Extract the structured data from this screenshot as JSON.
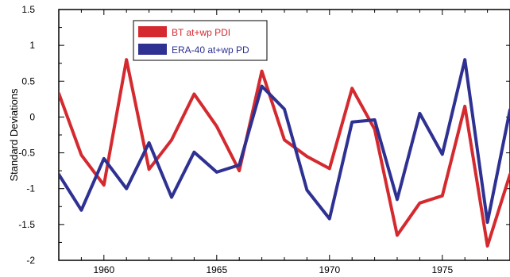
{
  "chart_data": {
    "type": "line",
    "title": "",
    "xlabel": "",
    "ylabel": "Standard Deviations",
    "xlim": [
      1958,
      1978
    ],
    "ylim": [
      -2,
      1.5
    ],
    "x_ticks": [
      1960,
      1965,
      1970,
      1975
    ],
    "x_tick_labels": [
      "1960",
      "1965",
      "1970",
      "1975"
    ],
    "y_ticks": [
      -2,
      -1.5,
      -1,
      -0.5,
      0,
      0.5,
      1,
      1.5
    ],
    "y_tick_labels": [
      "-2",
      "-1.5",
      "-1",
      "-0.5",
      "0",
      "0.5",
      "1",
      "1.5"
    ],
    "grid": false,
    "legend_position": "top-left",
    "x": [
      1958,
      1959,
      1960,
      1961,
      1962,
      1963,
      1964,
      1965,
      1966,
      1967,
      1968,
      1969,
      1970,
      1971,
      1972,
      1973,
      1974,
      1975,
      1976,
      1977,
      1978
    ],
    "series": [
      {
        "name": "BT at+wp PDI",
        "color": "#d42a2f",
        "values": [
          0.33,
          -0.53,
          -0.95,
          0.8,
          -0.73,
          -0.32,
          0.32,
          -0.13,
          -0.75,
          0.64,
          -0.32,
          -0.55,
          -0.72,
          0.4,
          -0.17,
          -1.65,
          -1.2,
          -1.1,
          0.15,
          -1.8,
          -0.8
        ]
      },
      {
        "name": "ERA-40 at+wp PD",
        "color": "#2e3192",
        "values": [
          -0.8,
          -1.3,
          -0.58,
          -1.0,
          -0.36,
          -1.12,
          -0.49,
          -0.77,
          -0.67,
          0.43,
          0.11,
          -1.02,
          -1.42,
          -0.07,
          -0.04,
          -1.15,
          0.05,
          -0.52,
          0.8,
          -1.47,
          0.1
        ]
      }
    ]
  }
}
